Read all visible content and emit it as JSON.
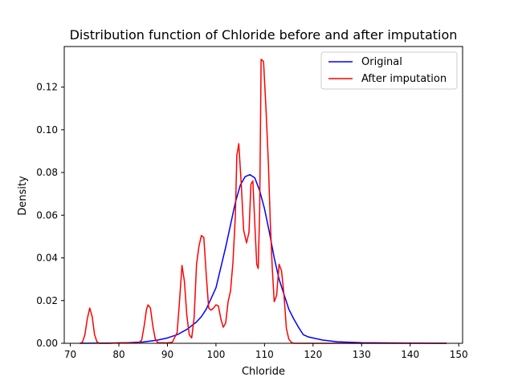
{
  "chart_data": {
    "type": "line",
    "title": "Distribution function of Chloride before and after imputation",
    "xlabel": "Chloride",
    "ylabel": "Density",
    "xlim": [
      68.75,
      150.8
    ],
    "ylim": [
      0,
      0.139
    ],
    "xticks": [
      70,
      80,
      90,
      100,
      110,
      120,
      130,
      140,
      150
    ],
    "yticks": [
      0.0,
      0.02,
      0.04,
      0.06,
      0.08,
      0.1,
      0.12
    ],
    "ytick_labels": [
      "0.00",
      "0.02",
      "0.04",
      "0.06",
      "0.08",
      "0.10",
      "0.12"
    ],
    "grid": false,
    "legend_position": "top-right",
    "series": [
      {
        "name": "Original",
        "color": "#0000ff",
        "x": [
          72.0,
          78,
          82,
          85,
          88,
          90,
          92,
          94,
          96,
          97,
          98,
          100,
          102,
          104,
          105,
          106,
          107,
          108,
          109,
          110,
          111,
          112,
          113,
          114,
          115,
          116,
          117,
          118,
          119,
          120,
          122,
          125,
          130,
          140,
          147.5
        ],
        "y": [
          0.0,
          0.0001,
          0.0003,
          0.0006,
          0.0015,
          0.0025,
          0.004,
          0.0065,
          0.01,
          0.0125,
          0.016,
          0.026,
          0.045,
          0.066,
          0.074,
          0.078,
          0.079,
          0.0775,
          0.0715,
          0.063,
          0.052,
          0.04,
          0.03,
          0.023,
          0.016,
          0.0115,
          0.0075,
          0.004,
          0.003,
          0.0025,
          0.0015,
          0.0007,
          0.0003,
          0.0001,
          0.0
        ]
      },
      {
        "name": "After imputation",
        "color": "#ff0000",
        "x": [
          72.0,
          72.5,
          73.0,
          73.5,
          74.0,
          74.5,
          75.0,
          75.5,
          76.0,
          78,
          80,
          82,
          84,
          84.7,
          85.2,
          85.7,
          86.0,
          86.5,
          87.0,
          87.5,
          88.0,
          90,
          91,
          92.0,
          92.5,
          93.0,
          93.5,
          94.0,
          94.5,
          95.0,
          95.5,
          96.0,
          96.5,
          97.0,
          97.5,
          98.0,
          98.5,
          99.0,
          99.5,
          100.0,
          100.5,
          101.0,
          101.5,
          102.0,
          102.5,
          103.0,
          103.5,
          104.0,
          104.3,
          104.7,
          105.2,
          105.7,
          106.3,
          106.8,
          107.2,
          107.6,
          108.0,
          108.4,
          108.7,
          109.0,
          109.3,
          109.8,
          110.3,
          110.8,
          111.2,
          111.6,
          112.0,
          112.5,
          113.0,
          113.5,
          114.0,
          114.5,
          115.0,
          115.5,
          116.0,
          118,
          122,
          128,
          135,
          147.5
        ],
        "y": [
          0.0,
          0.0005,
          0.004,
          0.0115,
          0.0165,
          0.0125,
          0.004,
          0.0006,
          0.0,
          0.0,
          0.0002,
          0.0002,
          0.0001,
          0.0015,
          0.008,
          0.016,
          0.018,
          0.0165,
          0.008,
          0.002,
          0.0003,
          0.0002,
          0.0005,
          0.005,
          0.02,
          0.0365,
          0.029,
          0.013,
          0.004,
          0.0025,
          0.012,
          0.037,
          0.0455,
          0.0505,
          0.0495,
          0.032,
          0.0165,
          0.0155,
          0.0165,
          0.018,
          0.0175,
          0.0115,
          0.0075,
          0.0095,
          0.0195,
          0.0245,
          0.038,
          0.06,
          0.088,
          0.0935,
          0.075,
          0.053,
          0.047,
          0.052,
          0.0745,
          0.076,
          0.056,
          0.037,
          0.035,
          0.062,
          0.133,
          0.132,
          0.11,
          0.084,
          0.056,
          0.035,
          0.0195,
          0.0225,
          0.037,
          0.034,
          0.023,
          0.007,
          0.002,
          0.0005,
          0.0,
          0.0,
          0.0,
          0.0,
          0.0,
          0.0
        ]
      }
    ]
  }
}
